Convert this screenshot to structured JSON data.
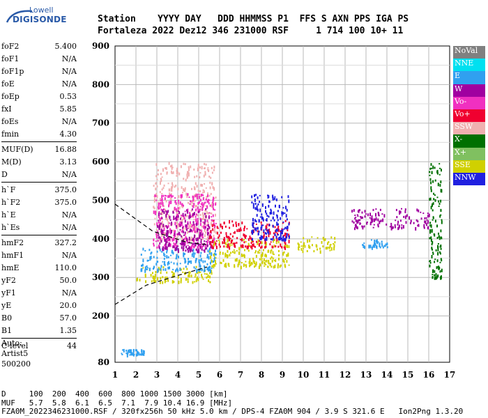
{
  "logo": {
    "line1": "Lowell",
    "line2": "DIGISONDE"
  },
  "header": {
    "line1": "Station    YYYY DAY   DDD HHMMSS P1  FFS S AXN PPS IGA PS",
    "line2": "Fortaleza 2022 Dez12 346 231000 RSF     1 714 100 10+ 11"
  },
  "params": [
    {
      "name": "foF2",
      "value": "5.400"
    },
    {
      "name": "foF1",
      "value": "N/A"
    },
    {
      "name": "foF1p",
      "value": "N/A"
    },
    {
      "name": "foE",
      "value": "N/A"
    },
    {
      "name": "foEp",
      "value": "0.53"
    },
    {
      "name": "fxI",
      "value": "5.85"
    },
    {
      "name": "foEs",
      "value": "N/A"
    },
    {
      "name": "fmin",
      "value": "4.30"
    },
    {
      "name": "MUF(D)",
      "value": "16.88",
      "sep": true
    },
    {
      "name": "M(D)",
      "value": "3.13"
    },
    {
      "name": "D",
      "value": "N/A"
    },
    {
      "name": "h`F",
      "value": "375.0",
      "sep": true
    },
    {
      "name": "h`F2",
      "value": "375.0"
    },
    {
      "name": "h`E",
      "value": "N/A"
    },
    {
      "name": "h`Es",
      "value": "N/A"
    },
    {
      "name": "hmF2",
      "value": "327.2",
      "sep": true
    },
    {
      "name": "hmF1",
      "value": "N/A"
    },
    {
      "name": "hmE",
      "value": "110.0"
    },
    {
      "name": "yF2",
      "value": "50.0"
    },
    {
      "name": "yF1",
      "value": "N/A"
    },
    {
      "name": "yE",
      "value": "20.0"
    },
    {
      "name": "B0",
      "value": "57.0"
    },
    {
      "name": "B1",
      "value": "1.35"
    },
    {
      "name": "C-level",
      "value": "44",
      "sep": true
    }
  ],
  "auto": {
    "line1": "Auto:",
    "line2": "Artist5",
    "line3": "500200"
  },
  "footer": {
    "line1": "D     100  200  400  600  800 1000 1500 3000 [km]",
    "line2": "MUF   5.7  5.8  6.1  6.5  7.1  7.9 10.4 16.9 [MHz]",
    "line3": "FZA0M_2022346231000.RSF / 320fx256h 50 kHz 5.0 km / DPS-4 FZA0M 904 / 3.9 S 321.6 E   Ion2Png 1.3.20"
  },
  "legend": [
    {
      "label": "NoVal",
      "color": "#808080"
    },
    {
      "label": "NNE",
      "color": "#00e0f0"
    },
    {
      "label": "E",
      "color": "#30a0f0"
    },
    {
      "label": "W",
      "color": "#a000a0"
    },
    {
      "label": "Vo-",
      "color": "#f030c0"
    },
    {
      "label": "Vo+",
      "color": "#f00030"
    },
    {
      "label": "SSW",
      "color": "#f0b0b0"
    },
    {
      "label": "X-",
      "color": "#007000"
    },
    {
      "label": "X+",
      "color": "#80c060"
    },
    {
      "label": "SSE",
      "color": "#d0d000"
    },
    {
      "label": "NNW",
      "color": "#2020e0"
    }
  ],
  "chart_data": {
    "type": "scatter",
    "xlabel": "",
    "ylabel": "",
    "x_unit": "MHz",
    "y_unit": "km",
    "xlim": [
      1,
      17
    ],
    "ylim": [
      80,
      900
    ],
    "x_ticks": [
      1,
      2,
      3,
      4,
      5,
      6,
      7,
      8,
      9,
      10,
      11,
      12,
      13,
      14,
      15,
      16,
      17
    ],
    "y_ticks": [
      80,
      200,
      300,
      400,
      500,
      600,
      700,
      800,
      900
    ],
    "grid": true,
    "legend_position": "right",
    "echo_clusters": [
      {
        "fmin": 2.0,
        "fmax": 5.6,
        "hmin": 290,
        "hmax": 330,
        "color": "#d0d000",
        "name": "SSE"
      },
      {
        "fmin": 2.2,
        "fmax": 5.8,
        "hmin": 320,
        "hmax": 380,
        "color": "#30a0f0",
        "name": "E"
      },
      {
        "fmin": 2.8,
        "fmax": 5.8,
        "hmin": 400,
        "hmax": 600,
        "color": "#f0b0b0",
        "name": "SSW"
      },
      {
        "fmin": 2.8,
        "fmax": 5.8,
        "hmin": 380,
        "hmax": 520,
        "color": "#f030c0",
        "name": "Vo-"
      },
      {
        "fmin": 3.0,
        "fmax": 5.6,
        "hmin": 370,
        "hmax": 480,
        "color": "#a000a0",
        "name": "W"
      },
      {
        "fmin": 5.5,
        "fmax": 9.3,
        "hmin": 330,
        "hmax": 400,
        "color": "#d0d000",
        "name": "SSE"
      },
      {
        "fmin": 5.5,
        "fmax": 9.3,
        "hmin": 380,
        "hmax": 450,
        "color": "#f00030",
        "name": "Vo+"
      },
      {
        "fmin": 7.5,
        "fmax": 9.3,
        "hmin": 400,
        "hmax": 520,
        "color": "#2020e0",
        "name": "NNW"
      },
      {
        "fmin": 9.7,
        "fmax": 11.5,
        "hmin": 370,
        "hmax": 410,
        "color": "#d0d000",
        "name": "SSE"
      },
      {
        "fmin": 12.3,
        "fmax": 16.0,
        "hmin": 430,
        "hmax": 480,
        "color": "#a000a0",
        "name": "W"
      },
      {
        "fmin": 12.8,
        "fmax": 14.0,
        "hmin": 380,
        "hmax": 400,
        "color": "#30a0f0",
        "name": "E"
      },
      {
        "fmin": 1.2,
        "fmax": 2.4,
        "hmin": 100,
        "hmax": 115,
        "color": "#30a0f0",
        "name": "E"
      },
      {
        "fmin": 16.0,
        "fmax": 16.6,
        "hmin": 300,
        "hmax": 600,
        "color": "#007000",
        "name": "X-"
      }
    ],
    "trace_curves": [
      {
        "name": "profile",
        "points": [
          [
            1.0,
            230
          ],
          [
            2.5,
            280
          ],
          [
            4.0,
            305
          ],
          [
            5.4,
            327
          ]
        ],
        "style": "dashed"
      },
      {
        "name": "profile-upper",
        "points": [
          [
            1.0,
            490
          ],
          [
            2.8,
            420
          ],
          [
            4.5,
            390
          ],
          [
            5.4,
            385
          ]
        ],
        "style": "dashed"
      }
    ]
  }
}
